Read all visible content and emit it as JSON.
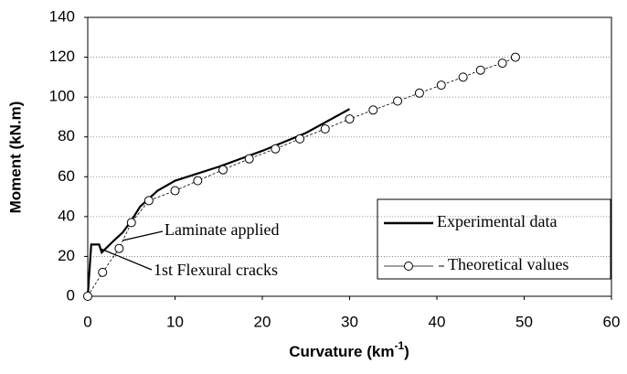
{
  "chart_data": {
    "type": "line",
    "xlabel": {
      "text": "Curvature (km",
      "sup": "-1",
      "end": ")"
    },
    "ylabel": "Moment (kN.m)",
    "xlim": [
      0,
      60
    ],
    "xticks": [
      0,
      10,
      20,
      30,
      40,
      50,
      60
    ],
    "ylim": [
      0,
      140
    ],
    "yticks": [
      0,
      20,
      40,
      60,
      80,
      100,
      120,
      140
    ],
    "grid": true,
    "legend": "lower right",
    "series": [
      {
        "name": "Experimental data",
        "color": "#000000",
        "marker": "none",
        "x": [
          0,
          0.4,
          1.3,
          1.6,
          3,
          4,
          5,
          6,
          7,
          8,
          10,
          15,
          20,
          25,
          30
        ],
        "values": [
          0,
          26,
          26,
          22,
          28,
          32,
          38,
          45,
          49,
          53,
          58,
          65,
          73,
          82,
          94
        ]
      },
      {
        "name": "Theoretical values",
        "color": "#000000",
        "marker": "circle",
        "x": [
          0,
          1.7,
          3.6,
          5,
          7,
          10,
          12.6,
          15.5,
          18.5,
          21.5,
          24.3,
          27.2,
          30,
          32.7,
          35.5,
          38,
          40.5,
          43,
          45,
          47.5,
          49
        ],
        "values": [
          0,
          12,
          24,
          37,
          48,
          53,
          58,
          63.5,
          69,
          74,
          79,
          84,
          89,
          93.5,
          98,
          102,
          106,
          110,
          113.5,
          117,
          120
        ]
      }
    ],
    "annotations": [
      {
        "text": "Laminate applied"
      },
      {
        "text": "1st Flexural cracks"
      }
    ]
  }
}
